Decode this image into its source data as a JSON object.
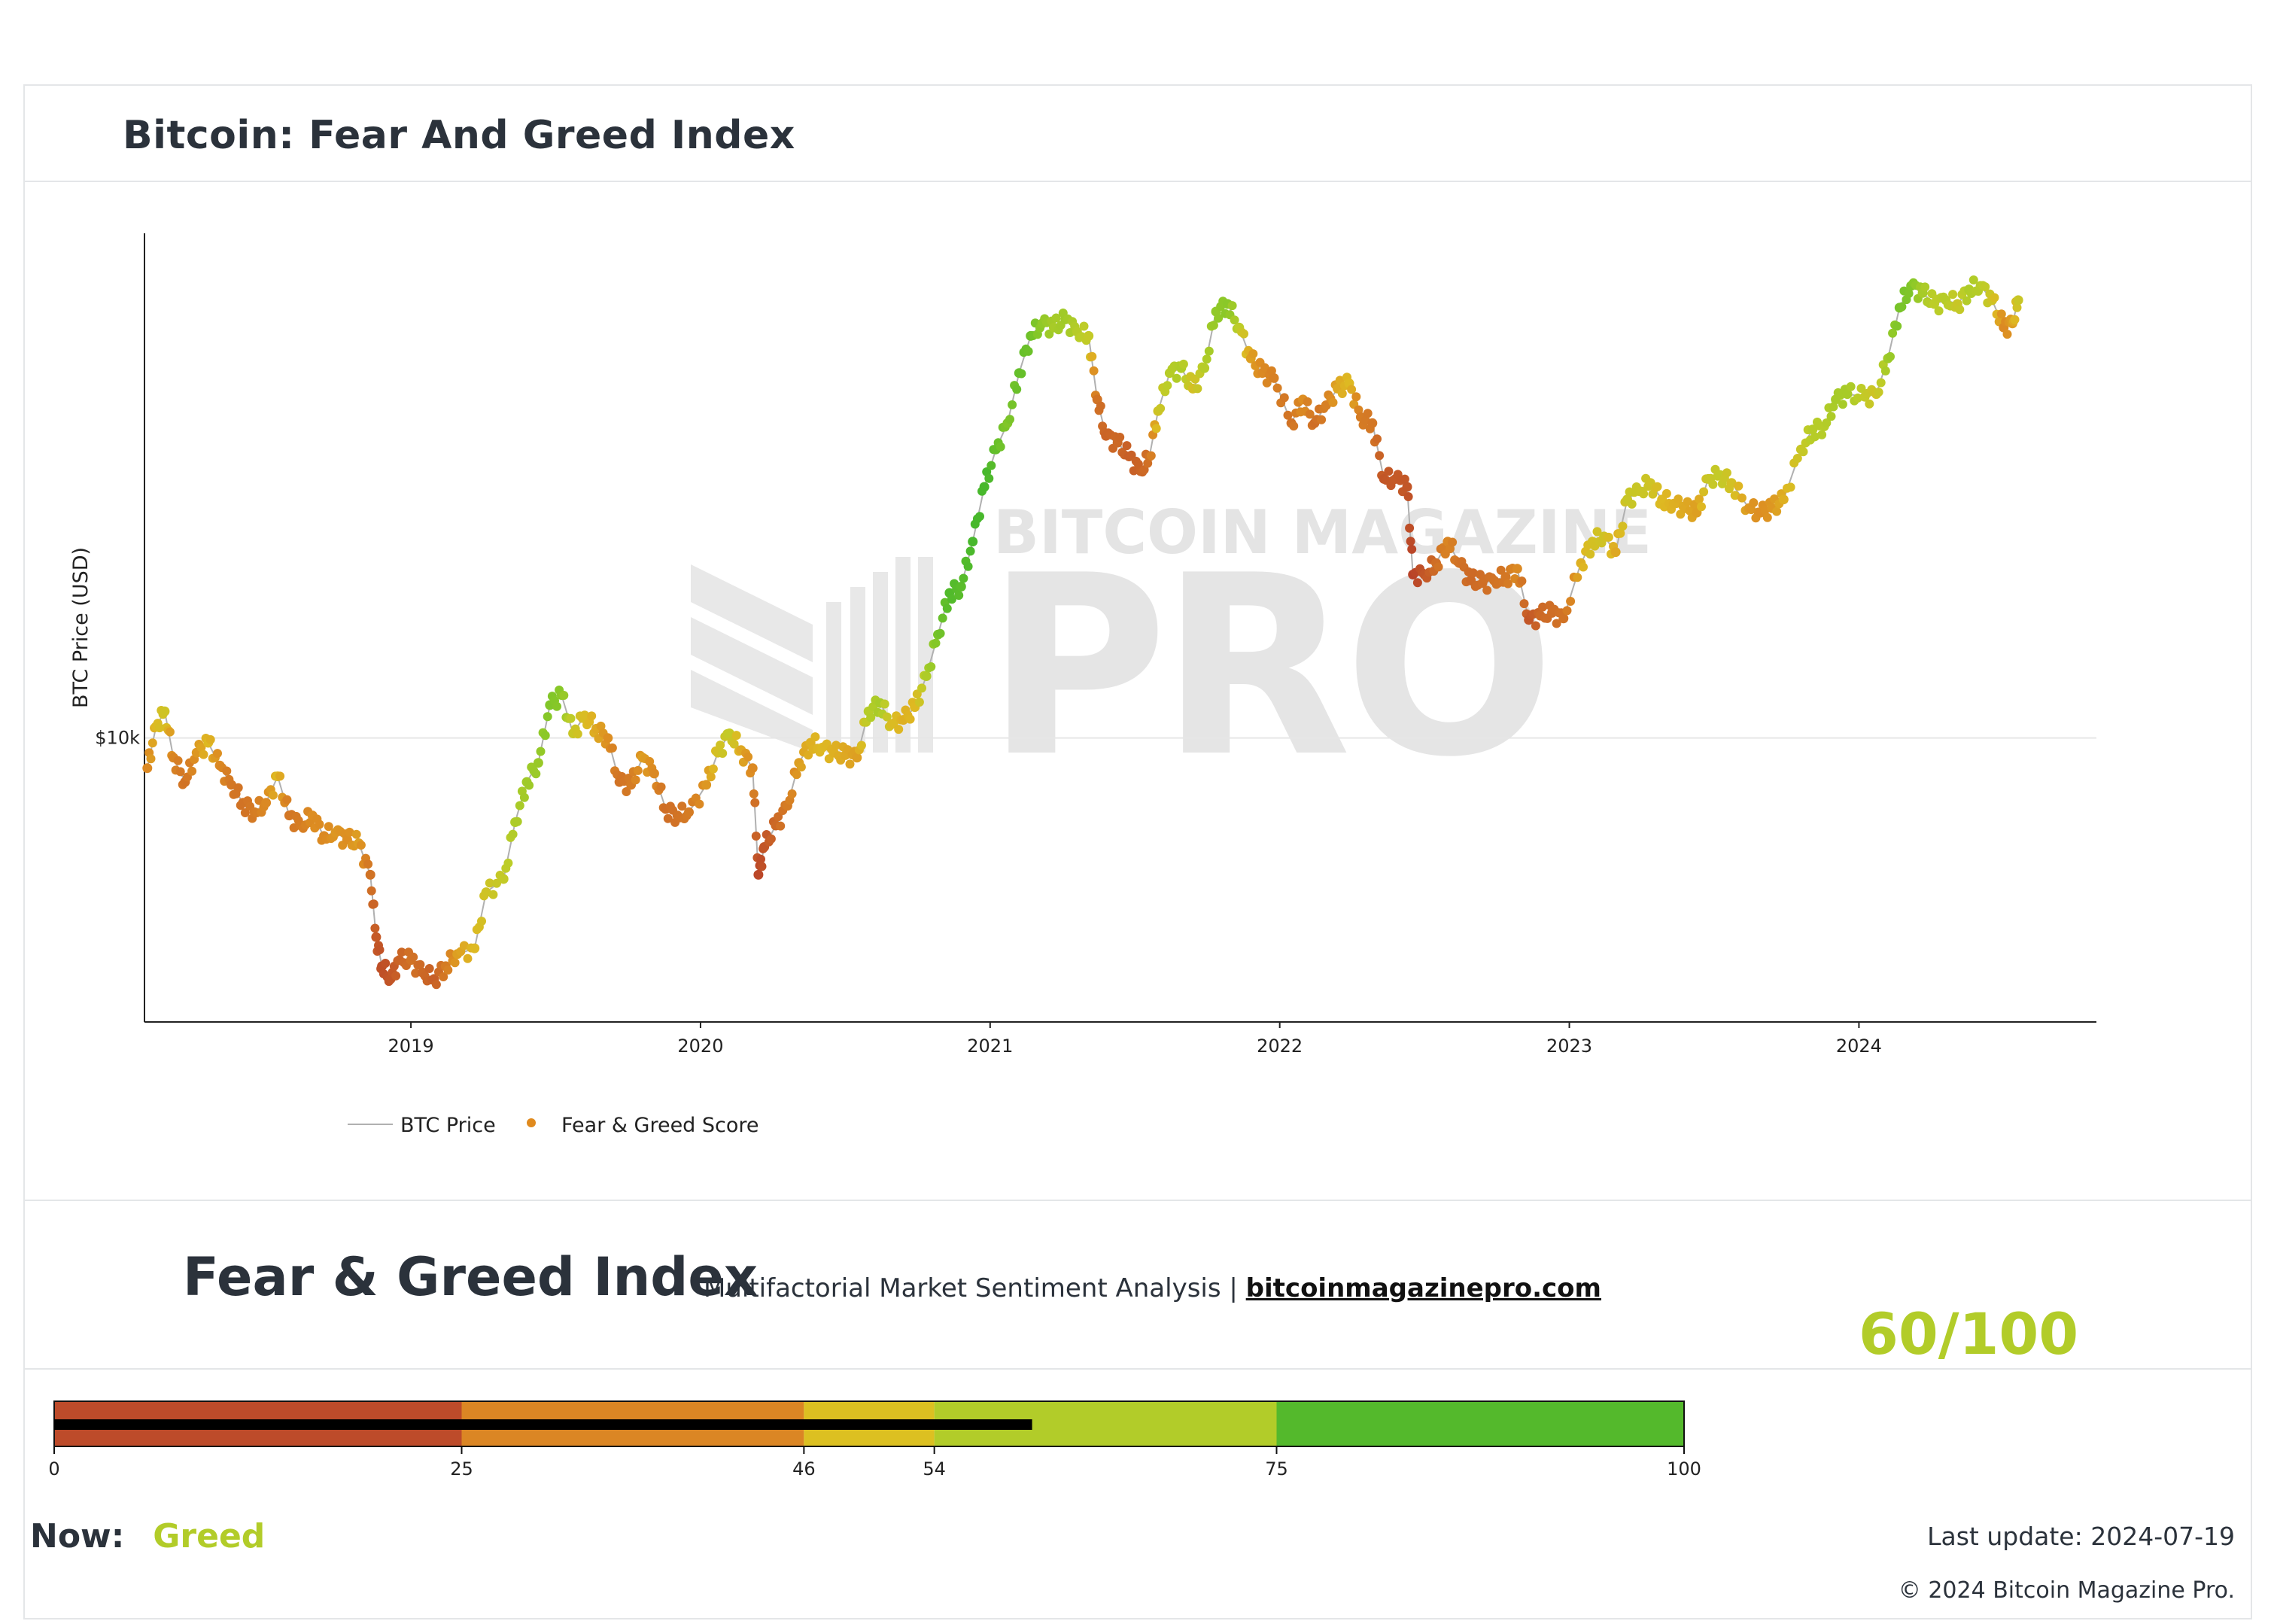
{
  "page": {
    "title": "Bitcoin: Fear And Greed Index"
  },
  "chart_data": {
    "type": "scatter",
    "title": "Bitcoin: Fear And Greed Index",
    "ylabel": "BTC Price (USD)",
    "xlabel": "",
    "y_scale": "log",
    "ylim": [
      3000,
      85000
    ],
    "xlim": [
      2018.08,
      2024.82
    ],
    "x_ticks": [
      {
        "value": 2019,
        "label": "2019"
      },
      {
        "value": 2020,
        "label": "2020"
      },
      {
        "value": 2021,
        "label": "2021"
      },
      {
        "value": 2022,
        "label": "2022"
      },
      {
        "value": 2023,
        "label": "2023"
      },
      {
        "value": 2024,
        "label": "2024"
      }
    ],
    "y_ticks": [
      {
        "value": 10000,
        "label": "$10k"
      }
    ],
    "series": [
      {
        "name": "BTC Price",
        "kind": "line",
        "color": "#b0b0b0"
      },
      {
        "name": "Fear & Greed Score",
        "kind": "markers",
        "color": "#e08a1e",
        "colorscale": "score 0-100: red → orange → yellow → green"
      }
    ],
    "points": [
      [
        2018.09,
        8800,
        40
      ],
      [
        2018.12,
        10500,
        52
      ],
      [
        2018.15,
        11200,
        58
      ],
      [
        2018.18,
        9200,
        38
      ],
      [
        2018.22,
        8300,
        30
      ],
      [
        2018.26,
        9400,
        44
      ],
      [
        2018.3,
        9800,
        52
      ],
      [
        2018.34,
        8900,
        40
      ],
      [
        2018.38,
        8200,
        32
      ],
      [
        2018.42,
        7600,
        30
      ],
      [
        2018.46,
        7300,
        34
      ],
      [
        2018.5,
        7600,
        40
      ],
      [
        2018.54,
        8500,
        52
      ],
      [
        2018.58,
        7200,
        32
      ],
      [
        2018.62,
        6900,
        34
      ],
      [
        2018.66,
        7200,
        42
      ],
      [
        2018.7,
        6600,
        40
      ],
      [
        2018.74,
        6700,
        44
      ],
      [
        2018.78,
        6500,
        42
      ],
      [
        2018.82,
        6400,
        46
      ],
      [
        2018.86,
        5600,
        30
      ],
      [
        2018.88,
        4300,
        20
      ],
      [
        2018.9,
        3800,
        15
      ],
      [
        2018.93,
        3600,
        18
      ],
      [
        2018.96,
        3900,
        24
      ],
      [
        2019.0,
        3900,
        30
      ],
      [
        2019.04,
        3700,
        26
      ],
      [
        2019.08,
        3600,
        22
      ],
      [
        2019.12,
        3800,
        34
      ],
      [
        2019.16,
        4000,
        46
      ],
      [
        2019.22,
        4100,
        52
      ],
      [
        2019.26,
        5200,
        58
      ],
      [
        2019.32,
        5500,
        62
      ],
      [
        2019.36,
        7000,
        68
      ],
      [
        2019.4,
        8300,
        72
      ],
      [
        2019.44,
        9000,
        74
      ],
      [
        2019.48,
        11500,
        80
      ],
      [
        2019.52,
        12000,
        78
      ],
      [
        2019.56,
        10200,
        60
      ],
      [
        2019.6,
        11000,
        54
      ],
      [
        2019.64,
        10400,
        48
      ],
      [
        2019.68,
        10000,
        42
      ],
      [
        2019.72,
        8300,
        30
      ],
      [
        2019.76,
        8200,
        34
      ],
      [
        2019.8,
        9200,
        46
      ],
      [
        2019.84,
        8600,
        40
      ],
      [
        2019.88,
        7400,
        28
      ],
      [
        2019.92,
        7200,
        30
      ],
      [
        2019.96,
        7300,
        34
      ],
      [
        2020.02,
        8200,
        44
      ],
      [
        2020.06,
        9400,
        56
      ],
      [
        2020.1,
        10200,
        62
      ],
      [
        2020.14,
        9500,
        48
      ],
      [
        2020.18,
        8800,
        40
      ],
      [
        2020.2,
        5600,
        12
      ],
      [
        2020.22,
        6300,
        18
      ],
      [
        2020.26,
        6900,
        26
      ],
      [
        2020.3,
        7500,
        34
      ],
      [
        2020.34,
        9000,
        46
      ],
      [
        2020.38,
        9800,
        50
      ],
      [
        2020.42,
        9600,
        52
      ],
      [
        2020.46,
        9400,
        50
      ],
      [
        2020.5,
        9300,
        48
      ],
      [
        2020.54,
        9200,
        46
      ],
      [
        2020.58,
        11200,
        66
      ],
      [
        2020.62,
        11600,
        70
      ],
      [
        2020.66,
        10600,
        54
      ],
      [
        2020.7,
        10800,
        50
      ],
      [
        2020.74,
        11400,
        52
      ],
      [
        2020.78,
        13000,
        68
      ],
      [
        2020.82,
        15500,
        82
      ],
      [
        2020.86,
        18500,
        90
      ],
      [
        2020.9,
        19000,
        88
      ],
      [
        2020.94,
        23000,
        92
      ],
      [
        2020.98,
        29000,
        94
      ],
      [
        2021.02,
        34000,
        86
      ],
      [
        2021.06,
        38000,
        80
      ],
      [
        2021.1,
        47000,
        86
      ],
      [
        2021.14,
        55000,
        84
      ],
      [
        2021.18,
        58000,
        76
      ],
      [
        2021.22,
        57000,
        70
      ],
      [
        2021.26,
        59000,
        72
      ],
      [
        2021.3,
        56000,
        66
      ],
      [
        2021.34,
        55000,
        62
      ],
      [
        2021.37,
        42000,
        30
      ],
      [
        2021.4,
        36000,
        24
      ],
      [
        2021.44,
        35000,
        26
      ],
      [
        2021.48,
        33000,
        22
      ],
      [
        2021.52,
        31000,
        24
      ],
      [
        2021.55,
        33000,
        30
      ],
      [
        2021.58,
        40000,
        58
      ],
      [
        2021.62,
        47000,
        66
      ],
      [
        2021.66,
        48000,
        68
      ],
      [
        2021.7,
        44000,
        56
      ],
      [
        2021.74,
        48000,
        66
      ],
      [
        2021.78,
        61000,
        76
      ],
      [
        2021.82,
        63000,
        78
      ],
      [
        2021.86,
        57000,
        64
      ],
      [
        2021.9,
        50000,
        46
      ],
      [
        2021.94,
        47000,
        40
      ],
      [
        2021.98,
        46000,
        36
      ],
      [
        2022.04,
        38000,
        30
      ],
      [
        2022.08,
        42000,
        42
      ],
      [
        2022.12,
        38000,
        28
      ],
      [
        2022.16,
        41000,
        36
      ],
      [
        2022.2,
        44000,
        48
      ],
      [
        2022.24,
        45000,
        52
      ],
      [
        2022.28,
        39000,
        34
      ],
      [
        2022.32,
        38000,
        32
      ],
      [
        2022.36,
        30000,
        18
      ],
      [
        2022.4,
        30000,
        20
      ],
      [
        2022.44,
        29000,
        18
      ],
      [
        2022.46,
        20000,
        10
      ],
      [
        2022.5,
        20000,
        18
      ],
      [
        2022.54,
        21000,
        28
      ],
      [
        2022.58,
        23000,
        38
      ],
      [
        2022.62,
        21000,
        30
      ],
      [
        2022.66,
        19500,
        26
      ],
      [
        2022.7,
        19300,
        28
      ],
      [
        2022.74,
        19500,
        30
      ],
      [
        2022.78,
        19800,
        32
      ],
      [
        2022.82,
        20500,
        40
      ],
      [
        2022.86,
        16500,
        18
      ],
      [
        2022.9,
        16800,
        26
      ],
      [
        2022.94,
        17000,
        28
      ],
      [
        2022.98,
        16600,
        30
      ],
      [
        2023.04,
        21000,
        50
      ],
      [
        2023.08,
        23000,
        56
      ],
      [
        2023.12,
        23500,
        58
      ],
      [
        2023.16,
        22000,
        48
      ],
      [
        2023.2,
        27500,
        60
      ],
      [
        2023.24,
        28500,
        60
      ],
      [
        2023.28,
        29500,
        58
      ],
      [
        2023.32,
        27500,
        52
      ],
      [
        2023.36,
        27000,
        50
      ],
      [
        2023.4,
        26500,
        48
      ],
      [
        2023.44,
        26000,
        46
      ],
      [
        2023.48,
        30000,
        60
      ],
      [
        2023.52,
        30500,
        62
      ],
      [
        2023.56,
        29500,
        56
      ],
      [
        2023.62,
        26500,
        44
      ],
      [
        2023.66,
        26000,
        42
      ],
      [
        2023.7,
        26500,
        44
      ],
      [
        2023.74,
        27500,
        50
      ],
      [
        2023.8,
        34000,
        60
      ],
      [
        2023.84,
        37000,
        66
      ],
      [
        2023.88,
        37500,
        66
      ],
      [
        2023.92,
        42000,
        70
      ],
      [
        2023.96,
        43000,
        70
      ],
      [
        2024.02,
        42500,
        62
      ],
      [
        2024.06,
        43000,
        58
      ],
      [
        2024.1,
        50000,
        72
      ],
      [
        2024.14,
        62000,
        82
      ],
      [
        2024.18,
        68000,
        80
      ],
      [
        2024.22,
        66000,
        70
      ],
      [
        2024.26,
        63000,
        64
      ],
      [
        2024.3,
        64000,
        66
      ],
      [
        2024.34,
        63000,
        60
      ],
      [
        2024.38,
        67000,
        68
      ],
      [
        2024.42,
        68000,
        66
      ],
      [
        2024.46,
        64000,
        58
      ],
      [
        2024.5,
        57000,
        40
      ],
      [
        2024.53,
        58000,
        46
      ],
      [
        2024.55,
        64000,
        60
      ]
    ]
  },
  "legend": {
    "line_label": "BTC Price",
    "marker_label": "Fear & Greed Score"
  },
  "watermark": {
    "line1": "BITCOIN MAGAZINE",
    "line2": "PRO"
  },
  "index_section": {
    "heading": "Fear & Greed Index",
    "subtitle": "Multifactorial Market Sentiment Analysis",
    "separator": "|",
    "link": "bitcoinmagazinepro.com"
  },
  "gauge": {
    "value": 60,
    "max": 100,
    "ticks": [
      "0",
      "25",
      "46",
      "54",
      "75",
      "100"
    ],
    "tick_values": [
      0,
      25,
      46,
      54,
      75,
      100
    ],
    "bands": [
      {
        "from": 0,
        "to": 25,
        "color": "#bd4b2a"
      },
      {
        "from": 25,
        "to": 46,
        "color": "#db8624"
      },
      {
        "from": 46,
        "to": 54,
        "color": "#dcc021"
      },
      {
        "from": 54,
        "to": 75,
        "color": "#b2cc29"
      },
      {
        "from": 75,
        "to": 100,
        "color": "#54b92c"
      }
    ],
    "score_text": "60/100",
    "score_color": "#b2cc29"
  },
  "status": {
    "now_label": "Now:",
    "now_value": "Greed",
    "now_color": "#b2cc29",
    "last_update": "Last update: 2024-07-19",
    "copyright": "© 2024 Bitcoin Magazine Pro."
  }
}
